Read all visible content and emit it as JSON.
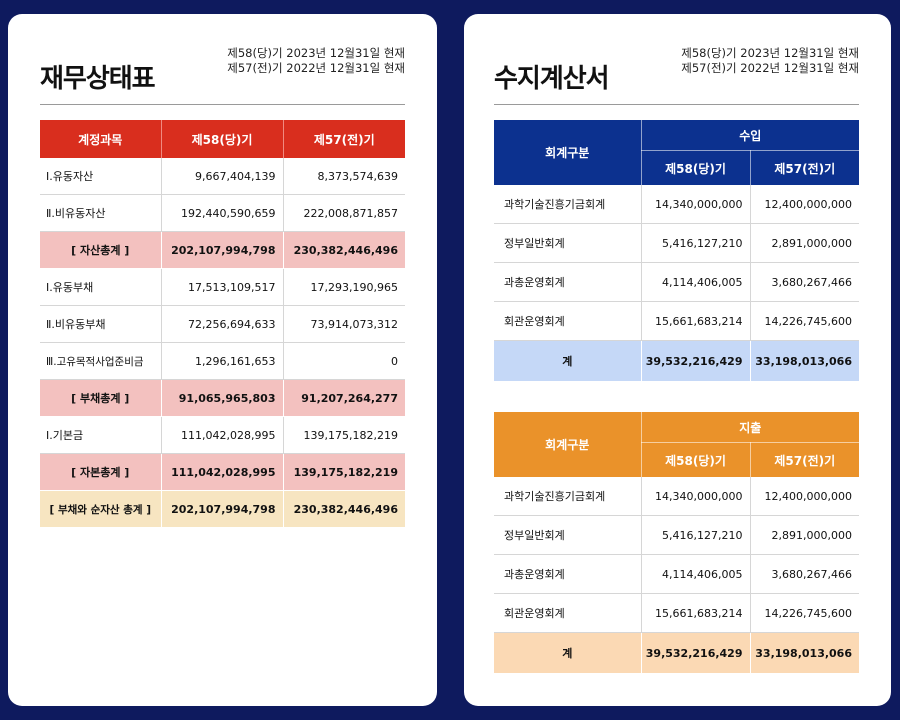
{
  "balance_sheet": {
    "title": "재무상태표",
    "period_current": "제58(당)기 2023년 12월31일 현재",
    "period_previous": "제57(전)기 2022년 12월31일 현재",
    "columns": [
      "계정과목",
      "제58(당)기",
      "제57(전)기"
    ],
    "rows": [
      {
        "label": "Ⅰ.유동자산",
        "current": "9,667,404,139",
        "previous": "8,373,574,639",
        "type": "normal"
      },
      {
        "label": "Ⅱ.비유동자산",
        "current": "192,440,590,659",
        "previous": "222,008,871,857",
        "type": "normal"
      },
      {
        "label": "[ 자산총계 ]",
        "current": "202,107,994,798",
        "previous": "230,382,446,496",
        "type": "total"
      },
      {
        "label": "Ⅰ.유동부채",
        "current": "17,513,109,517",
        "previous": "17,293,190,965",
        "type": "normal"
      },
      {
        "label": "Ⅱ.비유동부채",
        "current": "72,256,694,633",
        "previous": "73,914,073,312",
        "type": "normal"
      },
      {
        "label": "Ⅲ.고유목적사업준비금",
        "current": "1,296,161,653",
        "previous": "0",
        "type": "normal"
      },
      {
        "label": "[ 부채총계 ]",
        "current": "91,065,965,803",
        "previous": "91,207,264,277",
        "type": "total"
      },
      {
        "label": "Ⅰ.기본금",
        "current": "111,042,028,995",
        "previous": "139,175,182,219",
        "type": "normal"
      },
      {
        "label": "[ 자본총계 ]",
        "current": "111,042,028,995",
        "previous": "139,175,182,219",
        "type": "total"
      },
      {
        "label": "[ 부채와 순자산 총계 ]",
        "current": "202,107,994,798",
        "previous": "230,382,446,496",
        "type": "grand"
      }
    ],
    "colors": {
      "header": "#d92e1e",
      "total_row": "#f3c1bf",
      "grand_row": "#f7e5c1"
    }
  },
  "income_statement": {
    "title": "수지계산서",
    "period_current": "제58(당)기 2023년 12월31일 현재",
    "period_previous": "제57(전)기 2022년 12월31일 현재",
    "income": {
      "group_label": "회계구분",
      "section_label": "수입",
      "col_current": "제58(당)기",
      "col_previous": "제57(전)기",
      "rows": [
        {
          "label": "과학기술진흥기금회계",
          "current": "14,340,000,000",
          "previous": "12,400,000,000"
        },
        {
          "label": "정부일반회계",
          "current": "5,416,127,210",
          "previous": "2,891,000,000"
        },
        {
          "label": "과총운영회계",
          "current": "4,114,406,005",
          "previous": "3,680,267,466"
        },
        {
          "label": "회관운영회계",
          "current": "15,661,683,214",
          "previous": "14,226,745,600"
        }
      ],
      "total": {
        "label": "계",
        "current": "39,532,216,429",
        "previous": "33,198,013,066"
      },
      "colors": {
        "header": "#0c318f",
        "total_row": "#c5d8f7"
      }
    },
    "expense": {
      "group_label": "회계구분",
      "section_label": "지출",
      "col_current": "제58(당)기",
      "col_previous": "제57(전)기",
      "rows": [
        {
          "label": "과학기술진흥기금회계",
          "current": "14,340,000,000",
          "previous": "12,400,000,000"
        },
        {
          "label": "정부일반회계",
          "current": "5,416,127,210",
          "previous": "2,891,000,000"
        },
        {
          "label": "과총운영회계",
          "current": "4,114,406,005",
          "previous": "3,680,267,466"
        },
        {
          "label": "회관운영회계",
          "current": "15,661,683,214",
          "previous": "14,226,745,600"
        }
      ],
      "total": {
        "label": "계",
        "current": "39,532,216,429",
        "previous": "33,198,013,066"
      },
      "colors": {
        "header": "#ea922a",
        "total_row": "#fbd9b4"
      }
    }
  }
}
